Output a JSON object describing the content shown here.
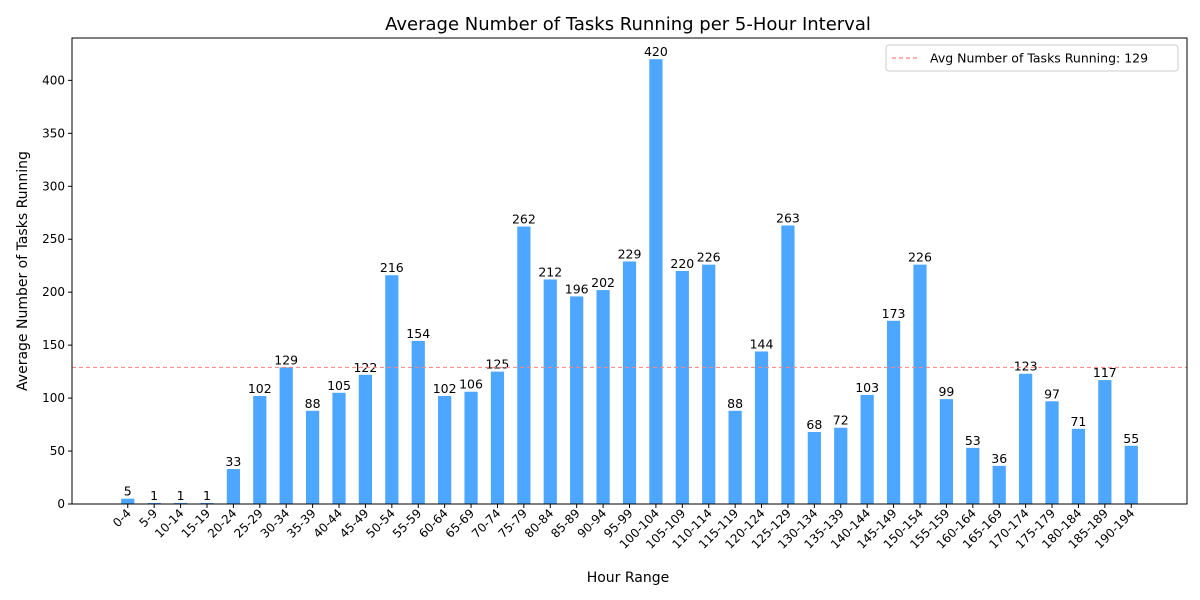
{
  "chart_data": {
    "type": "bar",
    "title": "Average Number of Tasks Running per 5-Hour Interval",
    "xlabel": "Hour Range",
    "ylabel": "Average Number of Tasks Running",
    "ylim": [
      0,
      440
    ],
    "yticks": [
      0,
      50,
      100,
      150,
      200,
      250,
      300,
      350,
      400
    ],
    "grid": false,
    "legend_placement": "top-right",
    "bar_color": "#4da6ff",
    "categories": [
      "0-4",
      "5-9",
      "10-14",
      "15-19",
      "20-24",
      "25-29",
      "30-34",
      "35-39",
      "40-44",
      "45-49",
      "50-54",
      "55-59",
      "60-64",
      "65-69",
      "70-74",
      "75-79",
      "80-84",
      "85-89",
      "90-94",
      "95-99",
      "100-104",
      "105-109",
      "110-114",
      "115-119",
      "120-124",
      "125-129",
      "130-134",
      "135-139",
      "140-144",
      "145-149",
      "150-154",
      "155-159",
      "160-164",
      "165-169",
      "170-174",
      "175-179",
      "180-184",
      "185-189",
      "190-194"
    ],
    "values": [
      5,
      1,
      1,
      1,
      33,
      102,
      129,
      88,
      105,
      122,
      216,
      154,
      102,
      106,
      125,
      262,
      212,
      196,
      202,
      229,
      420,
      220,
      226,
      88,
      144,
      263,
      68,
      72,
      103,
      173,
      226,
      99,
      53,
      36,
      123,
      97,
      71,
      117,
      55
    ],
    "reference_line": {
      "value": 129,
      "label": "Avg Number of Tasks Running: 129",
      "color": "#ff8080",
      "style": "dashed"
    }
  }
}
